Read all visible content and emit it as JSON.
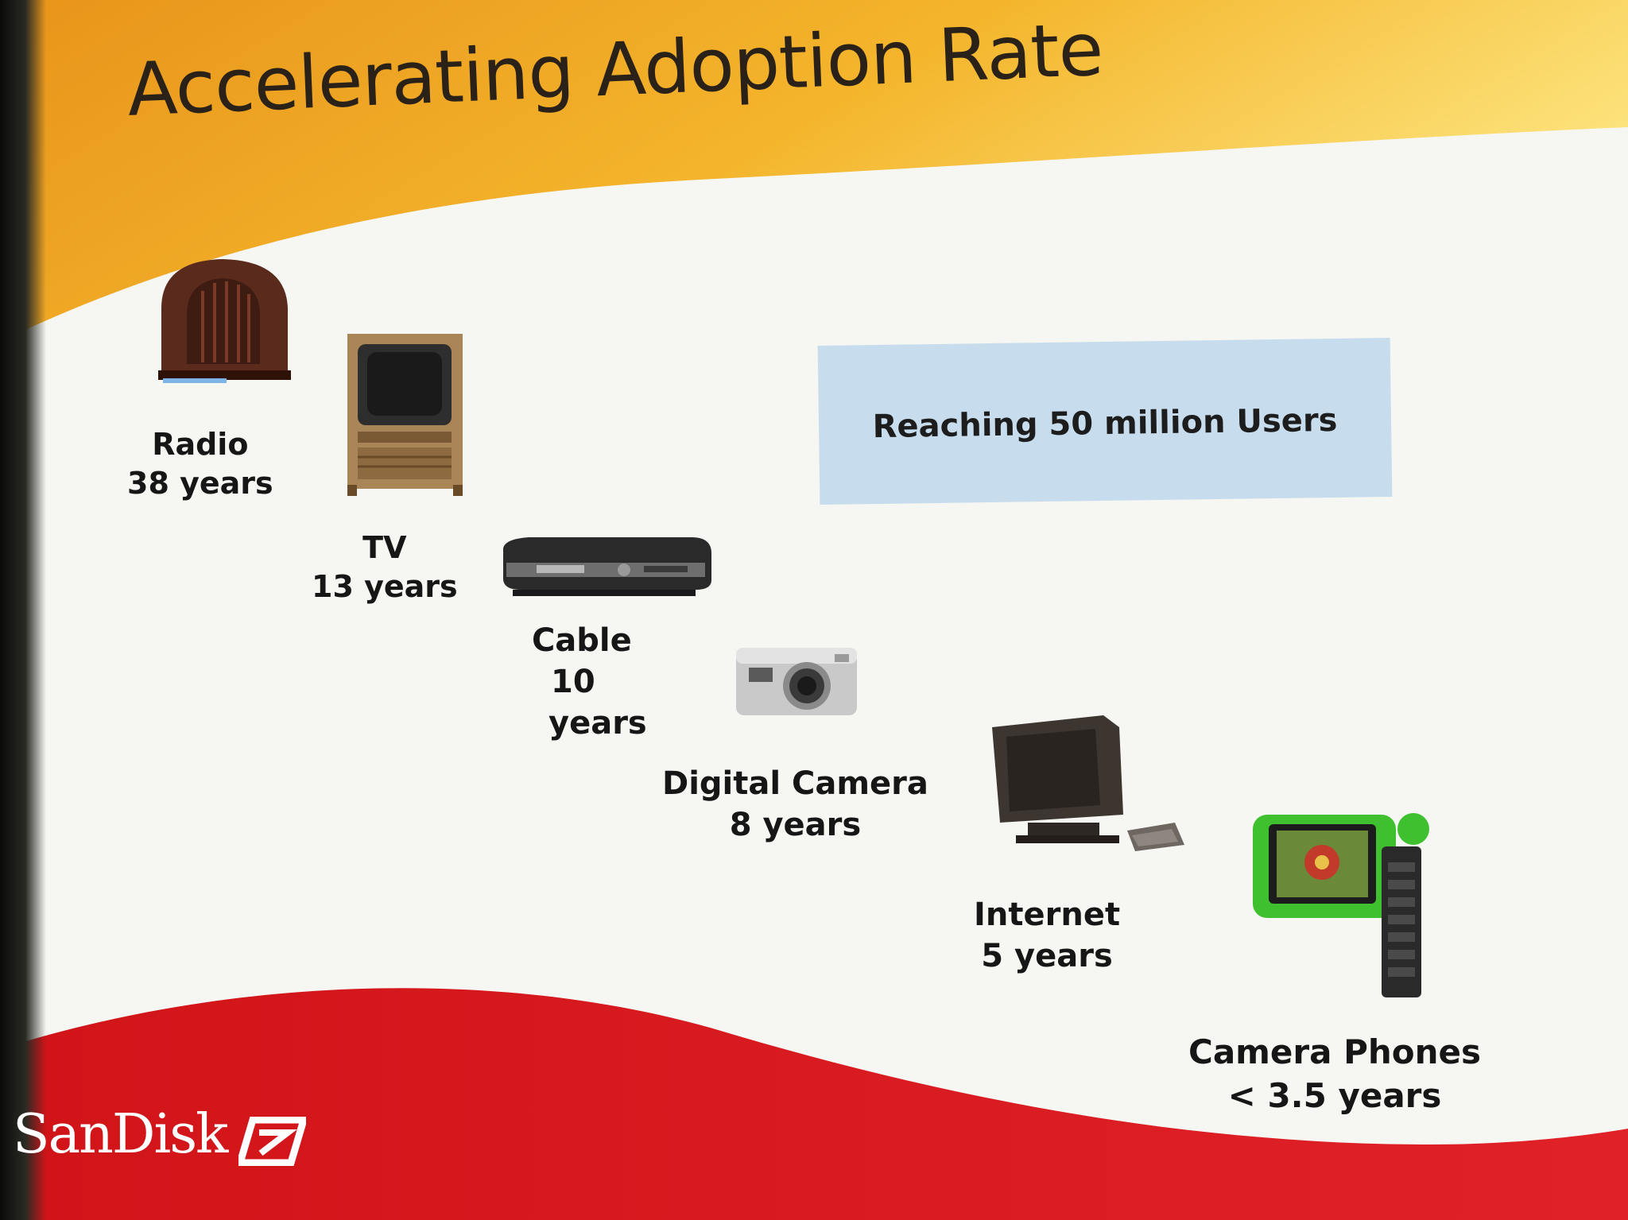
{
  "slide": {
    "title": "Accelerating Adoption Rate",
    "callout": "Reaching 50 million Users",
    "colors": {
      "header_top": "#f0a020",
      "header_bottom": "#fbe070",
      "footer_red": "#d5161a",
      "callout_fill": "#c7dded",
      "background": "#f6f6f2"
    },
    "technologies": [
      {
        "name": "Radio",
        "time": "38 years",
        "icon": "radio-icon"
      },
      {
        "name": "TV",
        "time": "13 years",
        "icon": "tv-icon"
      },
      {
        "name": "Cable",
        "time_parts": [
          "10",
          "years"
        ],
        "icon": "cable-box-icon"
      },
      {
        "name": "Digital Camera",
        "time": "8 years",
        "icon": "digital-camera-icon"
      },
      {
        "name": "Internet",
        "time": "5 years",
        "icon": "computer-icon"
      },
      {
        "name": "Camera Phones",
        "time": "< 3.5 years",
        "icon": "camera-phone-icon"
      }
    ],
    "logo": {
      "text": "SanDisk",
      "icon": "sandisk-logo-icon"
    }
  }
}
